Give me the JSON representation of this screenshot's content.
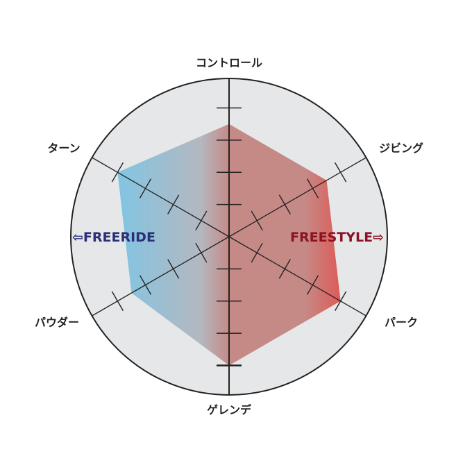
{
  "chart_data": {
    "type": "radar",
    "axes": [
      "コントロール",
      "ジビング",
      "パーク",
      "ゲレンデ",
      "パウダー",
      "ターン"
    ],
    "values": [
      3.5,
      3.5,
      4,
      4,
      3.5,
      4
    ],
    "rlim": [
      0,
      5
    ],
    "ticks": [
      1,
      2,
      3,
      4
    ],
    "grid": false,
    "annotations": {
      "left": "⇦FREERIDE",
      "right": "FREESTYLE⇨"
    },
    "colors": {
      "background": "#e6e7e8",
      "freeride": "#2b2f78",
      "freestyle": "#8c1224",
      "fill_left": "#7dc6e6",
      "fill_mid": "#c58a86",
      "fill_right": "#e2524e"
    }
  }
}
